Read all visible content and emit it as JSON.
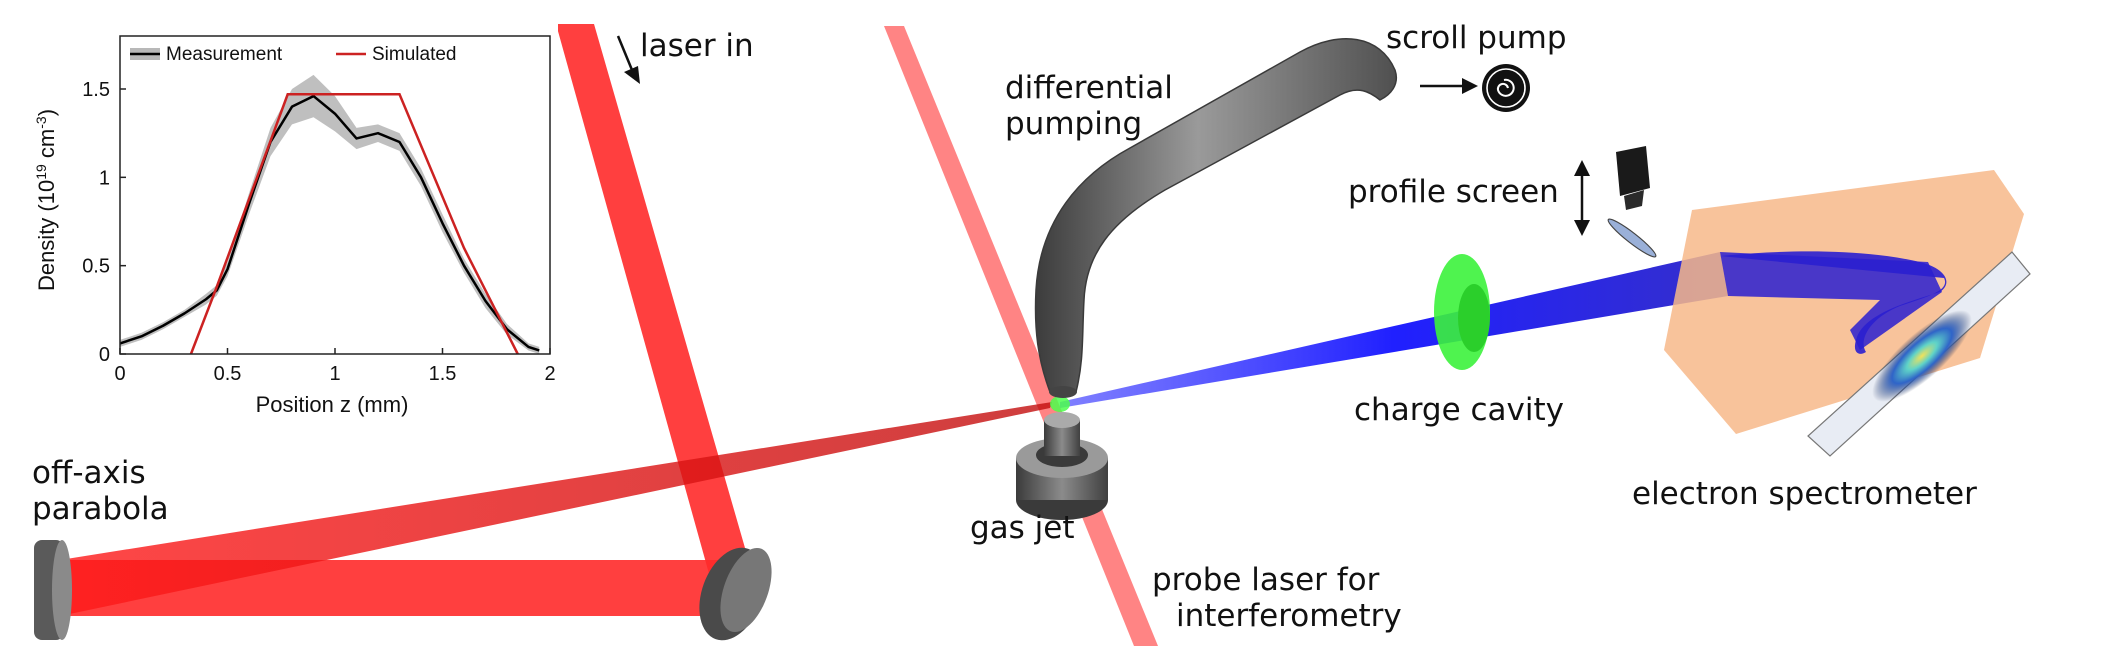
{
  "labels": {
    "laser_in": "laser in",
    "off_axis_parabola": [
      "off-axis",
      "parabola"
    ],
    "differential_pumping": [
      "differential",
      "pumping"
    ],
    "scroll_pump": "scroll pump",
    "profile_screen": "profile screen",
    "charge_cavity": "charge cavity",
    "electron_spectrometer": "electron spectrometer",
    "gas_jet": "gas jet",
    "probe_laser": [
      "probe laser for",
      "interferometry"
    ]
  },
  "colors": {
    "laser_red": "#ff2a2a",
    "probe_red": "#ff6f6f",
    "electron_beam": "#1a1aff",
    "charge_cavity_green": "#3cf23c",
    "spectrometer_orange": "#f7b98a",
    "metal_gray": "#6e6e6e",
    "simulated_line": "#cc2222",
    "measurement_line": "#000000",
    "measurement_band": "#b8b8b8"
  },
  "icons": {
    "scroll_pump": "spiral-icon",
    "profile_camera": "camera-icon",
    "move_arrows": "double-arrow-icon",
    "flow_arrow": "arrow-right-icon",
    "laser_arrow": "arrow-down-icon"
  },
  "chart_data": {
    "type": "line",
    "legend": [
      "Measurement",
      "Simulated"
    ],
    "legend_placement": "top",
    "xlabel": "Position z (mm)",
    "ylabel_main": "Density (10",
    "ylabel_exp": "19",
    "ylabel_unit": " cm",
    "ylabel_unit_exp": "-3",
    "ylabel_close": ")",
    "xlim": [
      0,
      2
    ],
    "ylim": [
      0,
      1.8
    ],
    "xticks": [
      0,
      0.5,
      1,
      1.5,
      2
    ],
    "xtick_labels": [
      "0",
      "0.5",
      "1",
      "1.5",
      "2"
    ],
    "yticks": [
      0,
      0.5,
      1,
      1.5
    ],
    "ytick_labels": [
      "0",
      "0.5",
      "1",
      "1.5"
    ],
    "grid": false,
    "series": [
      {
        "name": "Measurement",
        "x": [
          0,
          0.1,
          0.2,
          0.3,
          0.4,
          0.45,
          0.5,
          0.6,
          0.7,
          0.8,
          0.9,
          1.0,
          1.1,
          1.2,
          1.3,
          1.4,
          1.5,
          1.6,
          1.7,
          1.8,
          1.9,
          1.95
        ],
        "y": [
          0.06,
          0.1,
          0.16,
          0.23,
          0.31,
          0.36,
          0.48,
          0.85,
          1.2,
          1.4,
          1.46,
          1.36,
          1.22,
          1.25,
          1.2,
          1.0,
          0.74,
          0.5,
          0.3,
          0.14,
          0.04,
          0.02
        ],
        "band": [
          0.02,
          0.02,
          0.02,
          0.02,
          0.03,
          0.03,
          0.04,
          0.06,
          0.08,
          0.1,
          0.12,
          0.1,
          0.06,
          0.05,
          0.05,
          0.05,
          0.05,
          0.04,
          0.04,
          0.03,
          0.02,
          0.02
        ]
      },
      {
        "name": "Simulated",
        "x": [
          0.33,
          0.45,
          0.78,
          1.3,
          1.6,
          1.85
        ],
        "y": [
          0,
          0.38,
          1.47,
          1.47,
          0.6,
          0
        ]
      }
    ]
  }
}
